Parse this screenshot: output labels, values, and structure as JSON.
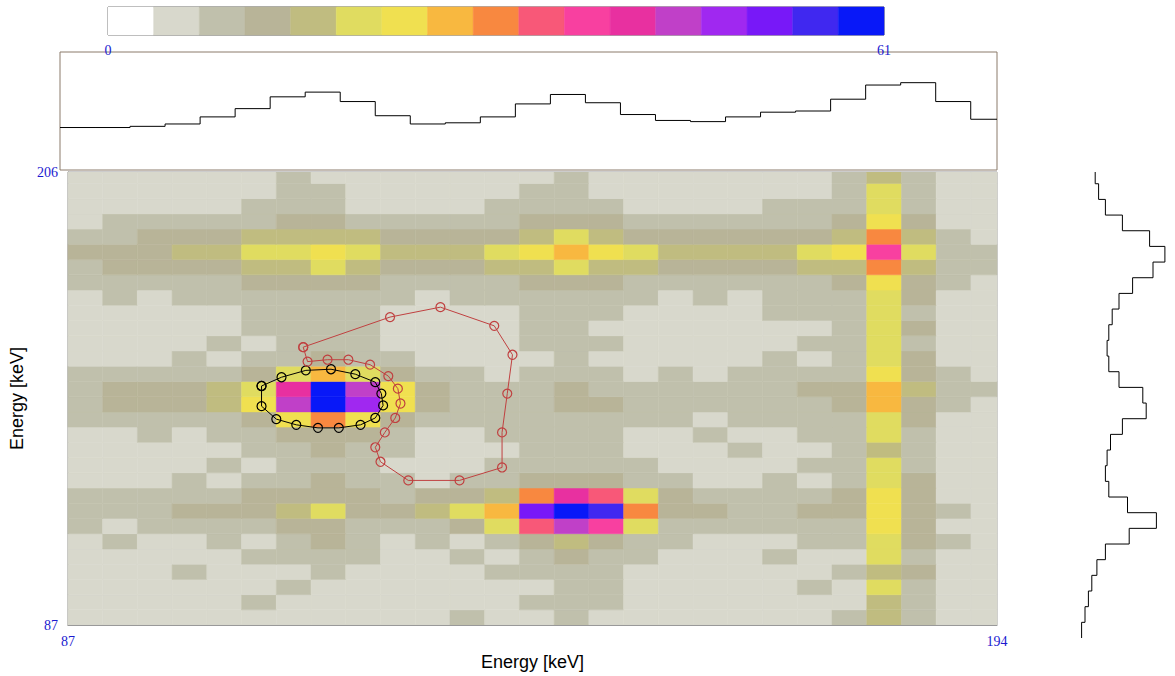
{
  "chart_data": {
    "type": "heatmap",
    "xlabel": "Energy [keV]",
    "ylabel": "Energy [keV]",
    "xlim": [
      87,
      194
    ],
    "ylim": [
      87,
      206
    ],
    "xticks": [
      87,
      194
    ],
    "yticks": [
      87,
      206
    ],
    "grid": false,
    "x_bins": [
      87,
      91,
      95,
      99,
      103,
      107,
      111,
      115,
      119,
      123,
      127,
      131,
      135,
      139,
      143,
      147,
      151,
      155,
      159,
      163,
      167,
      171,
      175,
      179,
      183,
      187,
      191,
      194
    ],
    "y_bins": [
      87,
      91,
      95,
      99,
      103,
      107,
      111,
      115,
      119,
      123,
      127,
      131,
      135,
      139,
      143,
      147,
      151,
      155,
      159,
      163,
      167,
      171,
      175,
      179,
      183,
      187,
      191,
      195,
      199,
      203,
      206
    ],
    "cells": [
      [
        5,
        6,
        4,
        7,
        5,
        6,
        5,
        7,
        6,
        5,
        6,
        8,
        6,
        7,
        9,
        7,
        6,
        5,
        6,
        7,
        6,
        7,
        8,
        16,
        9,
        6,
        5
      ],
      [
        6,
        5,
        7,
        5,
        6,
        8,
        6,
        5,
        7,
        6,
        5,
        7,
        6,
        8,
        10,
        8,
        6,
        7,
        5,
        6,
        7,
        6,
        7,
        17,
        10,
        7,
        6
      ],
      [
        7,
        6,
        5,
        6,
        7,
        6,
        8,
        6,
        5,
        7,
        6,
        6,
        7,
        7,
        9,
        8,
        7,
        6,
        6,
        5,
        7,
        8,
        6,
        18,
        9,
        6,
        7
      ],
      [
        5,
        7,
        6,
        8,
        6,
        7,
        7,
        8,
        6,
        6,
        7,
        7,
        8,
        9,
        10,
        9,
        7,
        6,
        7,
        6,
        6,
        7,
        8,
        17,
        11,
        7,
        6
      ],
      [
        6,
        6,
        7,
        6,
        7,
        8,
        9,
        9,
        8,
        7,
        6,
        8,
        7,
        9,
        11,
        10,
        8,
        7,
        6,
        7,
        8,
        7,
        7,
        19,
        10,
        6,
        7
      ],
      [
        7,
        8,
        6,
        7,
        8,
        7,
        10,
        11,
        9,
        7,
        8,
        7,
        9,
        13,
        15,
        13,
        10,
        8,
        7,
        6,
        7,
        8,
        9,
        20,
        11,
        8,
        6
      ],
      [
        8,
        7,
        8,
        9,
        8,
        9,
        11,
        13,
        10,
        9,
        9,
        12,
        18,
        34,
        44,
        36,
        20,
        10,
        9,
        8,
        8,
        9,
        10,
        22,
        12,
        7,
        7
      ],
      [
        9,
        10,
        9,
        11,
        12,
        13,
        16,
        18,
        14,
        12,
        15,
        19,
        27,
        52,
        61,
        55,
        30,
        13,
        11,
        10,
        10,
        11,
        12,
        25,
        13,
        8,
        7
      ],
      [
        8,
        9,
        8,
        9,
        10,
        11,
        12,
        14,
        11,
        10,
        11,
        13,
        16,
        30,
        40,
        33,
        18,
        11,
        9,
        8,
        9,
        10,
        11,
        22,
        12,
        7,
        6
      ],
      [
        7,
        6,
        7,
        8,
        7,
        8,
        10,
        11,
        9,
        8,
        7,
        8,
        9,
        11,
        13,
        12,
        9,
        8,
        7,
        7,
        8,
        7,
        9,
        19,
        11,
        7,
        6
      ],
      [
        6,
        7,
        6,
        7,
        8,
        7,
        9,
        10,
        8,
        7,
        6,
        7,
        8,
        9,
        10,
        9,
        8,
        7,
        6,
        7,
        7,
        8,
        8,
        18,
        10,
        6,
        7
      ],
      [
        7,
        6,
        7,
        6,
        7,
        8,
        9,
        11,
        9,
        8,
        7,
        6,
        7,
        8,
        9,
        8,
        7,
        6,
        7,
        8,
        6,
        7,
        9,
        17,
        10,
        7,
        6
      ],
      [
        6,
        7,
        8,
        7,
        8,
        9,
        11,
        13,
        11,
        8,
        7,
        7,
        8,
        8,
        9,
        9,
        7,
        7,
        8,
        7,
        7,
        8,
        8,
        18,
        10,
        6,
        7
      ],
      [
        8,
        9,
        8,
        9,
        10,
        14,
        22,
        30,
        24,
        13,
        9,
        8,
        8,
        9,
        10,
        9,
        8,
        8,
        7,
        8,
        8,
        9,
        10,
        21,
        12,
        7,
        6
      ],
      [
        10,
        11,
        12,
        13,
        16,
        22,
        45,
        61,
        50,
        24,
        11,
        10,
        9,
        10,
        12,
        11,
        9,
        10,
        9,
        10,
        9,
        10,
        11,
        26,
        14,
        8,
        7
      ],
      [
        10,
        12,
        11,
        13,
        15,
        20,
        42,
        58,
        46,
        22,
        12,
        10,
        9,
        10,
        11,
        10,
        9,
        9,
        10,
        9,
        10,
        11,
        12,
        27,
        15,
        9,
        8
      ],
      [
        8,
        9,
        8,
        9,
        10,
        13,
        20,
        26,
        21,
        12,
        8,
        8,
        7,
        8,
        9,
        8,
        7,
        8,
        7,
        8,
        8,
        9,
        10,
        22,
        12,
        8,
        7
      ],
      [
        7,
        6,
        7,
        8,
        7,
        8,
        10,
        12,
        10,
        8,
        7,
        7,
        6,
        7,
        8,
        7,
        7,
        6,
        7,
        7,
        8,
        7,
        9,
        19,
        11,
        7,
        6
      ],
      [
        6,
        7,
        6,
        7,
        8,
        7,
        9,
        10,
        9,
        7,
        6,
        7,
        7,
        8,
        9,
        8,
        7,
        7,
        6,
        7,
        7,
        8,
        8,
        18,
        10,
        6,
        7
      ],
      [
        7,
        6,
        7,
        6,
        7,
        8,
        8,
        9,
        8,
        7,
        7,
        6,
        7,
        8,
        8,
        7,
        6,
        7,
        7,
        6,
        7,
        7,
        9,
        19,
        11,
        7,
        6
      ],
      [
        6,
        7,
        6,
        7,
        7,
        8,
        9,
        9,
        8,
        7,
        6,
        7,
        7,
        8,
        9,
        8,
        7,
        6,
        7,
        7,
        8,
        8,
        8,
        20,
        10,
        7,
        6
      ],
      [
        7,
        8,
        7,
        8,
        8,
        9,
        10,
        10,
        9,
        8,
        7,
        8,
        8,
        9,
        10,
        9,
        8,
        7,
        8,
        7,
        8,
        9,
        10,
        21,
        12,
        7,
        7
      ],
      [
        8,
        8,
        9,
        9,
        10,
        11,
        12,
        13,
        11,
        10,
        9,
        9,
        10,
        11,
        12,
        11,
        10,
        9,
        9,
        9,
        10,
        10,
        12,
        24,
        13,
        8,
        7
      ],
      [
        10,
        11,
        12,
        13,
        14,
        16,
        17,
        18,
        16,
        14,
        13,
        14,
        15,
        17,
        20,
        17,
        15,
        14,
        13,
        13,
        14,
        15,
        17,
        30,
        17,
        9,
        8
      ],
      [
        11,
        12,
        14,
        15,
        17,
        19,
        20,
        22,
        19,
        17,
        16,
        17,
        19,
        22,
        28,
        22,
        18,
        16,
        15,
        15,
        17,
        19,
        22,
        38,
        20,
        10,
        9
      ],
      [
        9,
        10,
        11,
        12,
        14,
        15,
        16,
        17,
        15,
        13,
        12,
        13,
        14,
        16,
        19,
        16,
        13,
        12,
        12,
        12,
        13,
        14,
        16,
        30,
        16,
        8,
        7
      ],
      [
        7,
        8,
        8,
        9,
        10,
        10,
        11,
        12,
        10,
        9,
        8,
        9,
        10,
        11,
        12,
        11,
        9,
        8,
        9,
        8,
        9,
        10,
        11,
        22,
        12,
        7,
        7
      ],
      [
        6,
        7,
        7,
        6,
        7,
        8,
        9,
        8,
        7,
        7,
        6,
        7,
        8,
        9,
        9,
        8,
        7,
        6,
        7,
        7,
        8,
        8,
        9,
        19,
        10,
        6,
        6
      ],
      [
        7,
        6,
        6,
        7,
        6,
        7,
        8,
        8,
        7,
        6,
        7,
        6,
        7,
        8,
        8,
        7,
        7,
        6,
        6,
        7,
        7,
        7,
        8,
        18,
        10,
        7,
        6
      ],
      [
        6,
        7,
        6,
        7,
        7,
        6,
        8,
        7,
        6,
        7,
        6,
        7,
        6,
        7,
        8,
        7,
        6,
        7,
        6,
        6,
        7,
        6,
        8,
        17,
        9,
        6,
        5
      ]
    ],
    "colorbar": {
      "range": [
        0,
        61
      ],
      "ticks": [
        0,
        61
      ],
      "colors": [
        "#ffffff",
        "#d8d8cc",
        "#c0c0ac",
        "#b8b498",
        "#c0bc80",
        "#e0dc60",
        "#f0e050",
        "#f8b840",
        "#f88840",
        "#f85878",
        "#f840a0",
        "#e830a0",
        "#c040c8",
        "#a028f0",
        "#7818f8",
        "#4028f0",
        "#0818f8"
      ]
    },
    "x_projection": {
      "values": [
        36,
        36,
        37,
        39,
        45,
        52,
        62,
        66,
        58,
        46,
        39,
        40,
        45,
        56,
        64,
        57,
        47,
        42,
        41,
        45,
        49,
        50,
        60,
        72,
        74,
        58,
        43
      ],
      "lim": [
        0,
        100
      ],
      "color": "#000000"
    },
    "y_projection": {
      "values": [
        48,
        50,
        52,
        54,
        57,
        62,
        76,
        92,
        75,
        64,
        62,
        63,
        65,
        72,
        86,
        84,
        70,
        64,
        63,
        64,
        66,
        70,
        78,
        90,
        97,
        88,
        72,
        62,
        58,
        56
      ],
      "lim": [
        0,
        100
      ],
      "color": "#000000"
    },
    "gates": [
      {
        "color": "#000000",
        "marker": "open-circle",
        "points": [
          [
            109.3,
            149.8
          ],
          [
            109.3,
            144.5
          ],
          [
            111.0,
            141.1
          ],
          [
            113.3,
            139.6
          ],
          [
            115.8,
            138.8
          ],
          [
            118.2,
            138.8
          ],
          [
            120.7,
            139.6
          ],
          [
            122.4,
            141.4
          ],
          [
            123.3,
            144.7
          ],
          [
            123.1,
            147.8
          ],
          [
            122.4,
            150.8
          ],
          [
            120.1,
            152.9
          ],
          [
            117.3,
            154.2
          ],
          [
            114.4,
            153.9
          ],
          [
            111.6,
            152.1
          ]
        ]
      },
      {
        "color": "#c04040",
        "marker": "open-circle",
        "points": [
          [
            114.1,
            160.0
          ],
          [
            124.1,
            167.9
          ],
          [
            129.9,
            170.5
          ],
          [
            136.1,
            165.6
          ],
          [
            138.2,
            158.0
          ],
          [
            137.6,
            147.8
          ],
          [
            137.0,
            137.6
          ],
          [
            137.0,
            128.4
          ],
          [
            132.1,
            125.0
          ],
          [
            126.2,
            125.0
          ],
          [
            123.0,
            129.9
          ],
          [
            122.4,
            133.7
          ],
          [
            123.5,
            137.6
          ],
          [
            124.7,
            141.4
          ],
          [
            125.3,
            145.2
          ],
          [
            125.0,
            149.1
          ],
          [
            123.9,
            152.4
          ],
          [
            121.8,
            155.4
          ],
          [
            119.3,
            156.7
          ],
          [
            116.9,
            156.7
          ],
          [
            114.6,
            156.2
          ]
        ]
      }
    ]
  }
}
